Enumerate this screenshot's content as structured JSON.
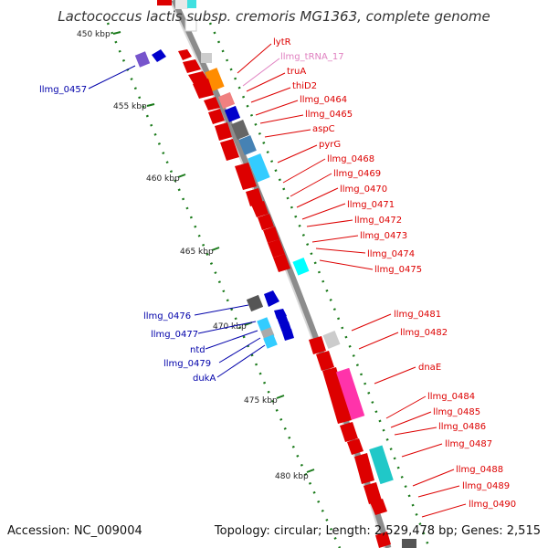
{
  "title": "Lactococcus lactis subsp. cremoris MG1363, complete genome",
  "footer": {
    "accession": "Accession: NC_009004",
    "topology": "Topology: circular; Length: 2,529,478 bp; Genes: 2,515"
  },
  "colors": {
    "backbone": "#8c8c8c",
    "tick": "#1a7a1a",
    "forward_label": "#dd0000",
    "reverse_label": "#0000aa",
    "trna_label": "#e080c0"
  },
  "ticks": [
    {
      "label": "450 kbp"
    },
    {
      "label": "455 kbp"
    },
    {
      "label": "460 kbp"
    },
    {
      "label": "465 kbp"
    },
    {
      "label": "470 kbp"
    },
    {
      "label": "475 kbp"
    },
    {
      "label": "480 kbp"
    }
  ],
  "forward_labels": [
    {
      "text": "lytR"
    },
    {
      "text": "llmg_tRNA_17"
    },
    {
      "text": "truA"
    },
    {
      "text": "thiD2"
    },
    {
      "text": "llmg_0464"
    },
    {
      "text": "llmg_0465"
    },
    {
      "text": "aspC"
    },
    {
      "text": "pyrG"
    },
    {
      "text": "llmg_0468"
    },
    {
      "text": "llmg_0469"
    },
    {
      "text": "llmg_0470"
    },
    {
      "text": "llmg_0471"
    },
    {
      "text": "llmg_0472"
    },
    {
      "text": "llmg_0473"
    },
    {
      "text": "llmg_0474"
    },
    {
      "text": "llmg_0475"
    },
    {
      "text": "llmg_0481"
    },
    {
      "text": "llmg_0482"
    },
    {
      "text": "dnaE"
    },
    {
      "text": "llmg_0484"
    },
    {
      "text": "llmg_0485"
    },
    {
      "text": "llmg_0486"
    },
    {
      "text": "llmg_0487"
    },
    {
      "text": "llmg_0488"
    },
    {
      "text": "llmg_0489"
    },
    {
      "text": "llmg_0490"
    }
  ],
  "reverse_labels": [
    {
      "text": "llmg_0457"
    },
    {
      "text": "llmg_0476"
    },
    {
      "text": "llmg_0477"
    },
    {
      "text": "ntd"
    },
    {
      "text": "llmg_0479"
    },
    {
      "text": "dukA"
    }
  ]
}
